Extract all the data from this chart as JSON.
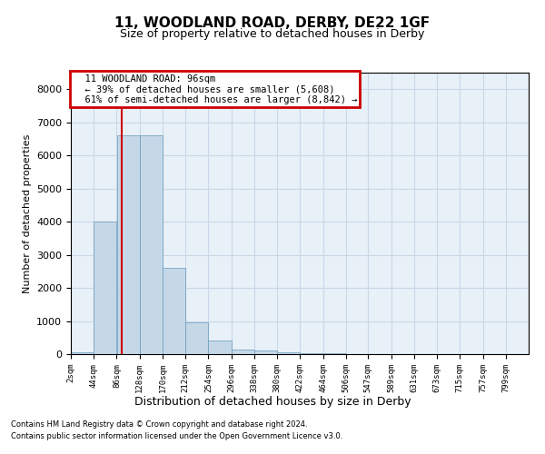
{
  "title1": "11, WOODLAND ROAD, DERBY, DE22 1GF",
  "title2": "Size of property relative to detached houses in Derby",
  "xlabel": "Distribution of detached houses by size in Derby",
  "ylabel": "Number of detached properties",
  "annotation_title": "11 WOODLAND ROAD: 96sqm",
  "annotation_line1": "← 39% of detached houses are smaller (5,608)",
  "annotation_line2": "61% of semi-detached houses are larger (8,842) →",
  "footer1": "Contains HM Land Registry data © Crown copyright and database right 2024.",
  "footer2": "Contains public sector information licensed under the Open Government Licence v3.0.",
  "property_size": 96,
  "bar_edges": [
    2,
    44,
    86,
    128,
    170,
    212,
    254,
    296,
    338,
    380,
    422,
    464,
    506,
    547,
    589,
    631,
    673,
    715,
    757,
    799,
    841
  ],
  "bar_heights": [
    50,
    4000,
    6600,
    6600,
    2600,
    950,
    400,
    150,
    100,
    50,
    30,
    20,
    10,
    5,
    3,
    2,
    1,
    1,
    1,
    0
  ],
  "bar_color": "#c5d8e8",
  "bar_edge_color": "#6699bb",
  "vline_color": "#cc0000",
  "annotation_box_edgecolor": "#cc0000",
  "grid_color": "#c8d8e8",
  "ylim": [
    0,
    8500
  ],
  "yticks": [
    0,
    1000,
    2000,
    3000,
    4000,
    5000,
    6000,
    7000,
    8000
  ],
  "bg_color": "#e8f0f8"
}
